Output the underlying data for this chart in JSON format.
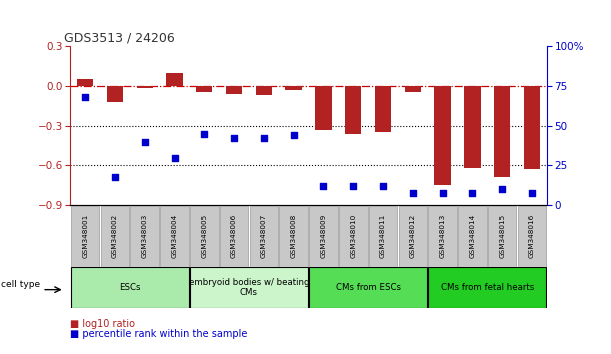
{
  "title": "GDS3513 / 24206",
  "samples": [
    "GSM348001",
    "GSM348002",
    "GSM348003",
    "GSM348004",
    "GSM348005",
    "GSM348006",
    "GSM348007",
    "GSM348008",
    "GSM348009",
    "GSM348010",
    "GSM348011",
    "GSM348012",
    "GSM348013",
    "GSM348014",
    "GSM348015",
    "GSM348016"
  ],
  "log10_ratio": [
    0.05,
    -0.12,
    -0.02,
    0.1,
    -0.05,
    -0.06,
    -0.07,
    -0.03,
    -0.33,
    -0.36,
    -0.35,
    -0.05,
    -0.75,
    -0.62,
    -0.69,
    -0.63
  ],
  "percentile_rank": [
    68,
    18,
    40,
    30,
    45,
    42,
    42,
    44,
    12,
    12,
    12,
    8,
    8,
    8,
    10,
    8
  ],
  "bar_color": "#b22222",
  "dot_color": "#0000cc",
  "dashed_line_color": "#cc0000",
  "dotted_line_color": "#000000",
  "ylim_left": [
    -0.9,
    0.3
  ],
  "ylim_right": [
    0,
    100
  ],
  "yticks_left": [
    -0.9,
    -0.6,
    -0.3,
    0.0,
    0.3
  ],
  "yticks_right": [
    0,
    25,
    50,
    75,
    100
  ],
  "cell_groups": [
    {
      "label": "ESCs",
      "start": 0,
      "end": 3,
      "color": "#aaeaaa"
    },
    {
      "label": "embryoid bodies w/ beating\nCMs",
      "start": 4,
      "end": 7,
      "color": "#ccf5cc"
    },
    {
      "label": "CMs from ESCs",
      "start": 8,
      "end": 11,
      "color": "#55dd55"
    },
    {
      "label": "CMs from fetal hearts",
      "start": 12,
      "end": 15,
      "color": "#22cc22"
    }
  ],
  "xlabel_row_bg": "#c8c8c8",
  "background_color": "#ffffff"
}
